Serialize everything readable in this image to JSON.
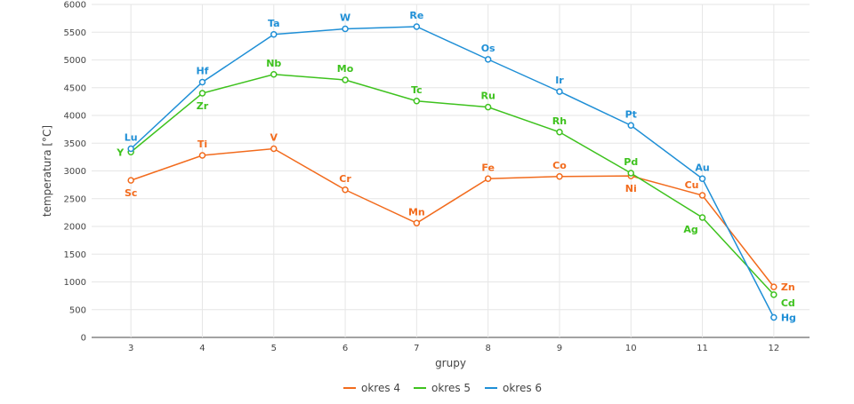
{
  "chart_data": {
    "type": "line",
    "xlabel": "grupy",
    "ylabel": "temperatura [°C]",
    "xlim": [
      2.45,
      12.5
    ],
    "ylim": [
      0,
      6000
    ],
    "x_ticks": [
      3,
      4,
      5,
      6,
      7,
      8,
      9,
      10,
      11,
      12
    ],
    "y_ticks": [
      0,
      500,
      1000,
      1500,
      2000,
      2500,
      3000,
      3500,
      4000,
      4500,
      5000,
      5500,
      6000
    ],
    "grid": true,
    "legend_position": "bottom-center",
    "series": [
      {
        "name": "okres 4",
        "color": "#f26b1d",
        "points": [
          {
            "x": 3,
            "y": 2830,
            "label": "Sc",
            "label_pos": "below"
          },
          {
            "x": 4,
            "y": 3280,
            "label": "Ti",
            "label_pos": "above"
          },
          {
            "x": 5,
            "y": 3400,
            "label": "V",
            "label_pos": "above"
          },
          {
            "x": 6,
            "y": 2660,
            "label": "Cr",
            "label_pos": "above"
          },
          {
            "x": 7,
            "y": 2060,
            "label": "Mn",
            "label_pos": "above"
          },
          {
            "x": 8,
            "y": 2860,
            "label": "Fe",
            "label_pos": "above"
          },
          {
            "x": 9,
            "y": 2900,
            "label": "Co",
            "label_pos": "above"
          },
          {
            "x": 10,
            "y": 2910,
            "label": "Ni",
            "label_pos": "below"
          },
          {
            "x": 11,
            "y": 2560,
            "label": "Cu",
            "label_pos": "above-left"
          },
          {
            "x": 12,
            "y": 910,
            "label": "Zn",
            "label_pos": "right"
          }
        ]
      },
      {
        "name": "okres 5",
        "color": "#3ec21e",
        "points": [
          {
            "x": 3,
            "y": 3340,
            "label": "Y",
            "label_pos": "left"
          },
          {
            "x": 4,
            "y": 4400,
            "label": "Zr",
            "label_pos": "below"
          },
          {
            "x": 5,
            "y": 4740,
            "label": "Nb",
            "label_pos": "above"
          },
          {
            "x": 6,
            "y": 4640,
            "label": "Mo",
            "label_pos": "above"
          },
          {
            "x": 7,
            "y": 4260,
            "label": "Tc",
            "label_pos": "above"
          },
          {
            "x": 8,
            "y": 4150,
            "label": "Ru",
            "label_pos": "above"
          },
          {
            "x": 9,
            "y": 3700,
            "label": "Rh",
            "label_pos": "above"
          },
          {
            "x": 10,
            "y": 2960,
            "label": "Pd",
            "label_pos": "above"
          },
          {
            "x": 11,
            "y": 2160,
            "label": "Ag",
            "label_pos": "below-left"
          },
          {
            "x": 12,
            "y": 770,
            "label": "Cd",
            "label_pos": "right-below"
          }
        ]
      },
      {
        "name": "okres 6",
        "color": "#1f8fd6",
        "points": [
          {
            "x": 3,
            "y": 3400,
            "label": "Lu",
            "label_pos": "above"
          },
          {
            "x": 4,
            "y": 4600,
            "label": "Hf",
            "label_pos": "above"
          },
          {
            "x": 5,
            "y": 5460,
            "label": "Ta",
            "label_pos": "above"
          },
          {
            "x": 6,
            "y": 5560,
            "label": "W",
            "label_pos": "above"
          },
          {
            "x": 7,
            "y": 5600,
            "label": "Re",
            "label_pos": "above"
          },
          {
            "x": 8,
            "y": 5010,
            "label": "Os",
            "label_pos": "above"
          },
          {
            "x": 9,
            "y": 4430,
            "label": "Ir",
            "label_pos": "above"
          },
          {
            "x": 10,
            "y": 3820,
            "label": "Pt",
            "label_pos": "above"
          },
          {
            "x": 11,
            "y": 2860,
            "label": "Au",
            "label_pos": "above"
          },
          {
            "x": 12,
            "y": 360,
            "label": "Hg",
            "label_pos": "right"
          }
        ]
      }
    ]
  }
}
